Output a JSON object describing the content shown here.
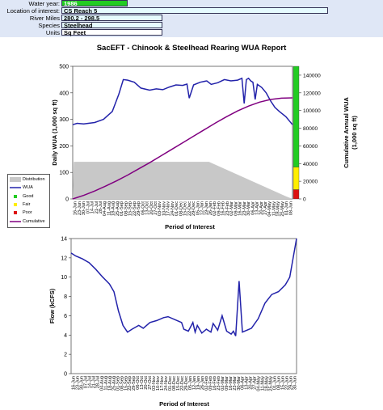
{
  "header": {
    "rows": [
      {
        "label": "Water year:",
        "value": "1986",
        "style": "green",
        "width": 82
      },
      {
        "label": "Location of interest:",
        "value": "CS Reach 5",
        "style": "cyan",
        "width": 330
      },
      {
        "label": "River Miles",
        "value": "280.2 - 298.5",
        "style": "cyan",
        "width": 125
      },
      {
        "label": "Species",
        "value": "Steelhead",
        "style": "cyan",
        "width": 125
      },
      {
        "label": "Units",
        "value": "Sq Feet",
        "style": "plain",
        "width": 125
      }
    ]
  },
  "legend": {
    "items": [
      {
        "label": "Distribution",
        "type": "patch",
        "color": "#c8c8c8"
      },
      {
        "label": "WUA",
        "type": "line",
        "color": "#2222aa"
      },
      {
        "label": "Good",
        "type": "dot",
        "color": "#22cc22"
      },
      {
        "label": "Fair",
        "type": "dot",
        "color": "#ffee00"
      },
      {
        "label": "Poor",
        "type": "dot",
        "color": "#dd1111"
      },
      {
        "label": "Cumulative",
        "type": "line",
        "color": "#800080"
      }
    ]
  },
  "chart_data": [
    {
      "type": "line",
      "title": "SacEFT - Chinook & Steelhead Rearing WUA Report",
      "xlabel": "Period of Interest",
      "ylabel": "Daily WUA (1,000 sq ft)",
      "y2label_line1": "Cumulative Annual WUA",
      "y2label_line2": "(1,000 sq ft)",
      "ylim": [
        0,
        500
      ],
      "y_ticks": [
        "0",
        "100",
        "200",
        "300",
        "400",
        "500"
      ],
      "y2lim": [
        0,
        150000
      ],
      "y2_ticks": [
        "0",
        "20000",
        "40000",
        "60000",
        "80000",
        "100000",
        "120000",
        "140000"
      ],
      "x_ticks": [
        "16-Jun",
        "23-Jun",
        "30-Jun",
        "07-Jul",
        "14-Jul",
        "21-Jul",
        "28-Jul",
        "04-Aug",
        "11-Aug",
        "18-Aug",
        "25-Aug",
        "01-Sep",
        "08-Sep",
        "15-Sep",
        "22-Sep",
        "29-Sep",
        "06-Oct",
        "13-Oct",
        "20-Oct",
        "27-Oct",
        "03-Nov",
        "10-Nov",
        "17-Nov",
        "24-Nov",
        "01-Dec",
        "08-Dec",
        "15-Dec",
        "22-Dec",
        "29-Dec",
        "05-Jan",
        "12-Jan",
        "19-Jan",
        "26-Jan",
        "02-Feb",
        "09-Feb",
        "16-Feb",
        "23-Feb",
        "02-Mar",
        "09-Mar",
        "16-Mar",
        "23-Mar",
        "30-Mar",
        "06-Apr",
        "13-Apr",
        "20-Apr",
        "27-Apr",
        "04-May",
        "11-May",
        "18-May",
        "25-May",
        "01-Jun",
        "08-Jun"
      ],
      "series": [
        {
          "name": "WUA",
          "color": "#2222aa",
          "axis": "left",
          "x": [
            0,
            0.02,
            0.05,
            0.1,
            0.14,
            0.18,
            0.21,
            0.23,
            0.25,
            0.28,
            0.31,
            0.35,
            0.38,
            0.41,
            0.44,
            0.47,
            0.5,
            0.52,
            0.53,
            0.55,
            0.58,
            0.61,
            0.63,
            0.66,
            0.69,
            0.72,
            0.75,
            0.77,
            0.78,
            0.79,
            0.8,
            0.81,
            0.82,
            0.83,
            0.84,
            0.86,
            0.88,
            0.9,
            0.92,
            0.94,
            0.97,
            1.0
          ],
          "values": [
            280,
            285,
            283,
            288,
            300,
            330,
            395,
            450,
            448,
            440,
            418,
            410,
            415,
            412,
            422,
            430,
            428,
            433,
            380,
            430,
            440,
            445,
            432,
            438,
            450,
            445,
            448,
            455,
            360,
            450,
            455,
            445,
            440,
            375,
            432,
            420,
            400,
            370,
            345,
            330,
            310,
            280
          ]
        },
        {
          "name": "Cumulative",
          "color": "#800080",
          "axis": "right",
          "x": [
            0,
            0.05,
            0.1,
            0.15,
            0.2,
            0.25,
            0.3,
            0.35,
            0.4,
            0.45,
            0.5,
            0.55,
            0.6,
            0.65,
            0.7,
            0.75,
            0.8,
            0.85,
            0.9,
            0.95,
            1.0
          ],
          "values": [
            0,
            4000,
            9000,
            14500,
            20500,
            27000,
            34000,
            41000,
            48500,
            56000,
            63500,
            71000,
            78500,
            86000,
            93000,
            99500,
            105000,
            109500,
            112500,
            114000,
            114300
          ]
        },
        {
          "name": "Distribution",
          "color": "#c8c8c8",
          "axis": "left",
          "fill": true,
          "x": [
            0,
            0.005,
            0.62,
            0.97,
            1.0
          ],
          "values": [
            0,
            140,
            140,
            10,
            0
          ]
        }
      ],
      "quality_bar": [
        {
          "label": "Good",
          "color": "#22cc22",
          "from": 0.24,
          "to": 1.0
        },
        {
          "label": "Fair",
          "color": "#ffee00",
          "from": 0.07,
          "to": 0.24
        },
        {
          "label": "Poor",
          "color": "#dd1111",
          "from": 0.0,
          "to": 0.07
        }
      ]
    },
    {
      "type": "line",
      "title": "",
      "xlabel": "Period of Interest",
      "ylabel": "Flow (kCFS)",
      "ylim": [
        0,
        14
      ],
      "y_ticks": [
        "0",
        "2",
        "4",
        "6",
        "8",
        "10",
        "12",
        "14"
      ],
      "x_ticks": [
        "16-Jun",
        "23-Jun",
        "30-Jun",
        "07-Jul",
        "14-Jul",
        "21-Jul",
        "28-Jul",
        "04-Aug",
        "11-Aug",
        "18-Aug",
        "25-Aug",
        "01-Sep",
        "08-Sep",
        "15-Sep",
        "22-Sep",
        "29-Sep",
        "06-Oct",
        "13-Oct",
        "20-Oct",
        "27-Oct",
        "03-Nov",
        "10-Nov",
        "17-Nov",
        "24-Nov",
        "01-Dec",
        "08-Dec",
        "15-Dec",
        "22-Dec",
        "29-Dec",
        "05-Jan",
        "12-Jan",
        "19-Jan",
        "26-Jan",
        "02-Feb",
        "09-Feb",
        "16-Feb",
        "23-Feb",
        "02-Mar",
        "09-Mar",
        "16-Mar",
        "23-Mar",
        "30-Mar",
        "06-Apr",
        "13-Apr",
        "20-Apr",
        "27-Apr",
        "04-May",
        "11-May",
        "18-May",
        "25-May",
        "01-Jun",
        "08-Jun",
        "15-Jun",
        "22-Jun",
        "29-Jun",
        "30-Jun"
      ],
      "series": [
        {
          "name": "Flow",
          "color": "#2222aa",
          "x": [
            0,
            0.02,
            0.05,
            0.08,
            0.11,
            0.14,
            0.17,
            0.19,
            0.21,
            0.23,
            0.25,
            0.27,
            0.3,
            0.32,
            0.35,
            0.38,
            0.41,
            0.43,
            0.46,
            0.49,
            0.5,
            0.52,
            0.54,
            0.55,
            0.56,
            0.58,
            0.6,
            0.62,
            0.63,
            0.65,
            0.67,
            0.69,
            0.71,
            0.72,
            0.73,
            0.745,
            0.76,
            0.78,
            0.8,
            0.83,
            0.86,
            0.89,
            0.92,
            0.95,
            0.97,
            0.985,
            1.0
          ],
          "values": [
            12.5,
            12.2,
            11.9,
            11.5,
            10.8,
            10.0,
            9.3,
            8.5,
            6.5,
            5.0,
            4.3,
            4.6,
            5.0,
            4.7,
            5.3,
            5.5,
            5.8,
            5.9,
            5.6,
            5.3,
            4.6,
            4.4,
            5.3,
            4.3,
            5.0,
            4.2,
            4.6,
            4.3,
            5.2,
            4.5,
            6.0,
            4.4,
            4.1,
            4.4,
            3.9,
            9.6,
            4.3,
            4.5,
            4.7,
            5.7,
            7.3,
            8.2,
            8.5,
            9.2,
            10.0,
            12.0,
            14.0
          ]
        }
      ]
    }
  ]
}
